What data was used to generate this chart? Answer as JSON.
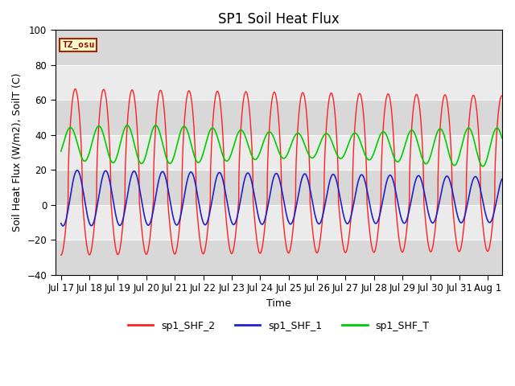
{
  "title": "SP1 Soil Heat Flux",
  "xlabel": "Time",
  "ylabel": "Soil Heat Flux (W/m2), SoilT (C)",
  "ylim": [
    -40,
    100
  ],
  "yticks": [
    -40,
    -20,
    0,
    20,
    40,
    60,
    80,
    100
  ],
  "xlim_days": [
    -0.2,
    15.5
  ],
  "xtick_labels": [
    "Jul 17",
    "Jul 18",
    "Jul 19",
    "Jul 20",
    "Jul 21",
    "Jul 22",
    "Jul 23",
    "Jul 24",
    "Jul 25",
    "Jul 26",
    "Jul 27",
    "Jul 28",
    "Jul 29",
    "Jul 30",
    "Jul 31",
    "Aug 1"
  ],
  "xtick_positions": [
    0,
    1,
    2,
    3,
    4,
    5,
    6,
    7,
    8,
    9,
    10,
    11,
    12,
    13,
    14,
    15
  ],
  "color_red": "#FF2020",
  "color_blue": "#2020CC",
  "color_green": "#00CC00",
  "plot_bg": "#FFFFFF",
  "band_light": "#EBEBEB",
  "band_dark": "#D8D8D8",
  "tz_label": "TZ_osu",
  "tz_bg": "#FFFFCC",
  "tz_border": "#AA2200",
  "legend_labels": [
    "sp1_SHF_2",
    "sp1_SHF_1",
    "sp1_SHF_T"
  ],
  "legend_colors": [
    "#FF2020",
    "#2020CC",
    "#00CC00"
  ],
  "title_fontsize": 12,
  "label_fontsize": 9,
  "tick_fontsize": 8.5
}
